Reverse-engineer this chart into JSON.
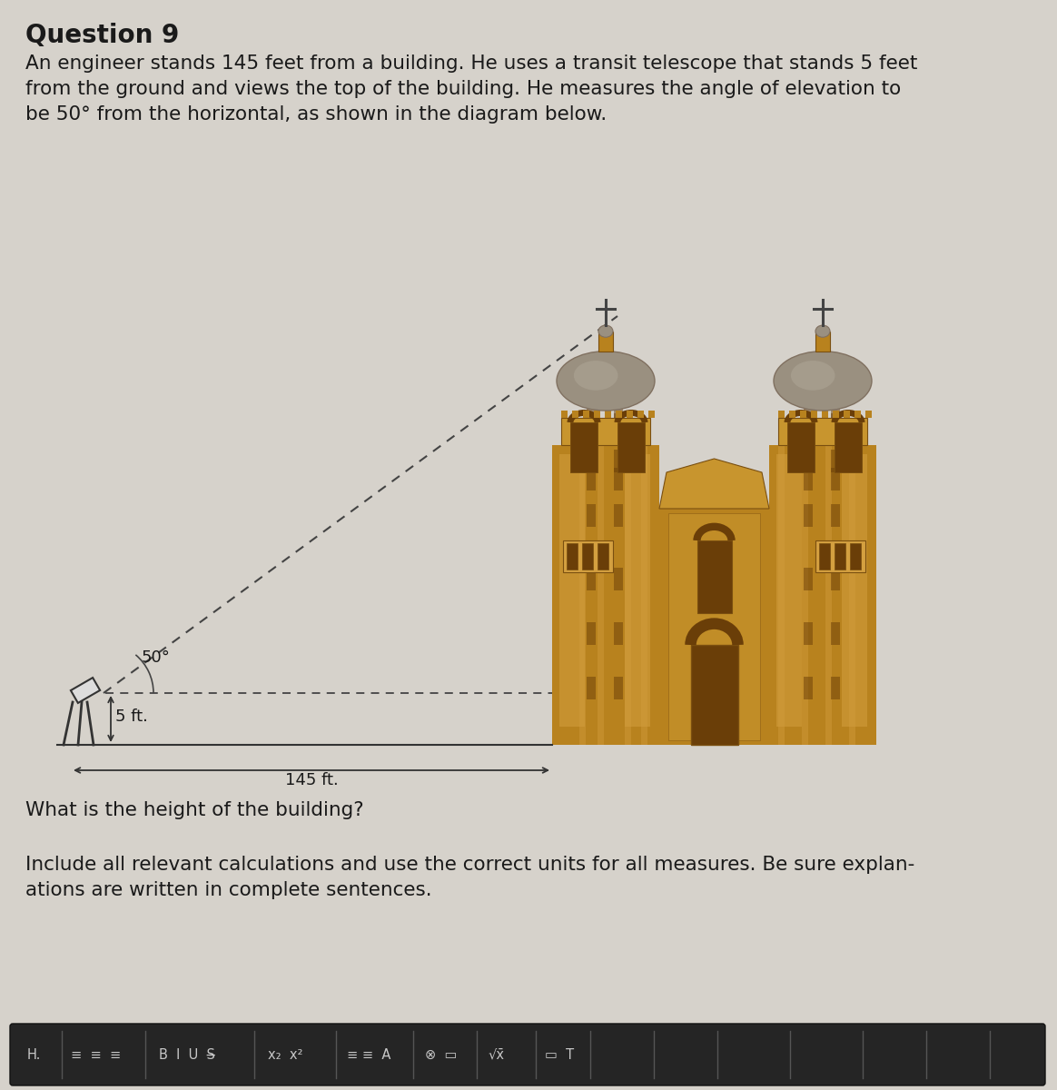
{
  "title": "Question 9",
  "desc1": "An engineer stands 145 feet from a building. He uses a transit telescope that stands 5 feet",
  "desc2": "from the ground and views the top of the building. He measures the angle of elevation to",
  "desc3": "be 50° from the horizontal, as shown in the diagram below.",
  "question": "What is the height of the building?",
  "instr1": "Include all relevant calculations and use the correct units for all measures. Be sure explan-",
  "instr2": "ations are written in complete sentences.",
  "angle_label": "50°",
  "height_label": "5 ft.",
  "distance_label": "145 ft.",
  "bg_color": "#d6d2cb",
  "dashed_color": "#444444",
  "line_color": "#333333",
  "font_color": "#1a1a1a",
  "building_tan": "#c8952e",
  "building_tan2": "#b8821e",
  "building_tan3": "#d4a040",
  "building_dark": "#7a4f10",
  "building_shadow": "#6a3e08",
  "building_mid": "#a87020",
  "dome_color": "#9a9080",
  "dome_light": "#b0a898",
  "dome_dark": "#807060",
  "toolbar_bg": "#252525",
  "toolbar_text": "#c8c8c8",
  "title_fontsize": 20,
  "body_fontsize": 15.5,
  "diagram_fontsize": 13
}
